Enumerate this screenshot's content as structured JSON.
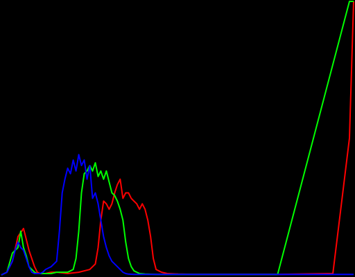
{
  "chart_data": {
    "type": "line",
    "xlim": [
      0,
      255
    ],
    "ylim": [
      0,
      1
    ],
    "grid": false,
    "legend": "none",
    "series": [
      {
        "color": "#ff0000",
        "x": [
          0,
          4,
          8,
          12,
          16,
          18,
          20,
          22,
          24,
          26,
          28,
          30,
          32,
          36,
          40,
          48,
          56,
          64,
          68,
          70,
          72,
          74,
          76,
          78,
          80,
          82,
          84,
          86,
          88,
          90,
          92,
          94,
          96,
          98,
          100,
          102,
          104,
          106,
          108,
          110,
          112,
          116,
          120,
          128,
          140,
          160,
          200,
          240,
          252,
          255
        ],
        "y": [
          0.0,
          0.01,
          0.05,
          0.14,
          0.17,
          0.13,
          0.09,
          0.06,
          0.03,
          0.01,
          0.005,
          0.005,
          0.005,
          0.01,
          0.01,
          0.005,
          0.01,
          0.02,
          0.04,
          0.1,
          0.2,
          0.27,
          0.26,
          0.24,
          0.26,
          0.3,
          0.33,
          0.35,
          0.28,
          0.3,
          0.3,
          0.28,
          0.27,
          0.26,
          0.24,
          0.26,
          0.24,
          0.2,
          0.14,
          0.06,
          0.02,
          0.01,
          0.005,
          0.003,
          0.002,
          0.002,
          0.002,
          0.005,
          0.5,
          1.0
        ]
      },
      {
        "color": "#00ff00",
        "x": [
          0,
          4,
          8,
          12,
          14,
          16,
          18,
          20,
          22,
          24,
          26,
          28,
          30,
          32,
          36,
          40,
          48,
          52,
          54,
          56,
          58,
          60,
          62,
          64,
          66,
          68,
          70,
          72,
          74,
          76,
          78,
          80,
          82,
          84,
          86,
          88,
          90,
          92,
          94,
          96,
          100,
          104,
          112,
          120,
          140,
          200,
          252,
          255
        ],
        "y": [
          0.0,
          0.01,
          0.08,
          0.1,
          0.16,
          0.1,
          0.07,
          0.03,
          0.02,
          0.01,
          0.005,
          0.005,
          0.005,
          0.005,
          0.005,
          0.01,
          0.01,
          0.02,
          0.06,
          0.16,
          0.3,
          0.37,
          0.38,
          0.4,
          0.38,
          0.41,
          0.36,
          0.38,
          0.35,
          0.38,
          0.34,
          0.3,
          0.29,
          0.27,
          0.24,
          0.2,
          0.12,
          0.06,
          0.03,
          0.015,
          0.005,
          0.003,
          0.002,
          0.002,
          0.002,
          0.002,
          1.0,
          1.0
        ]
      },
      {
        "color": "#0000ff",
        "x": [
          0,
          4,
          8,
          10,
          12,
          14,
          16,
          18,
          20,
          22,
          24,
          26,
          28,
          30,
          32,
          36,
          40,
          42,
          44,
          46,
          48,
          50,
          52,
          54,
          56,
          58,
          60,
          62,
          64,
          66,
          68,
          70,
          72,
          74,
          76,
          78,
          80,
          82,
          84,
          86,
          88,
          90,
          92,
          96,
          100,
          110,
          130,
          200,
          255
        ],
        "y": [
          0.0,
          0.01,
          0.05,
          0.09,
          0.12,
          0.1,
          0.09,
          0.06,
          0.03,
          0.01,
          0.005,
          0.005,
          0.005,
          0.01,
          0.02,
          0.03,
          0.05,
          0.16,
          0.3,
          0.35,
          0.39,
          0.37,
          0.42,
          0.38,
          0.44,
          0.4,
          0.42,
          0.35,
          0.4,
          0.28,
          0.3,
          0.26,
          0.2,
          0.14,
          0.1,
          0.07,
          0.05,
          0.04,
          0.03,
          0.02,
          0.01,
          0.005,
          0.003,
          0.002,
          0.002,
          0.002,
          0.002,
          0.002,
          0.002
        ]
      }
    ]
  }
}
